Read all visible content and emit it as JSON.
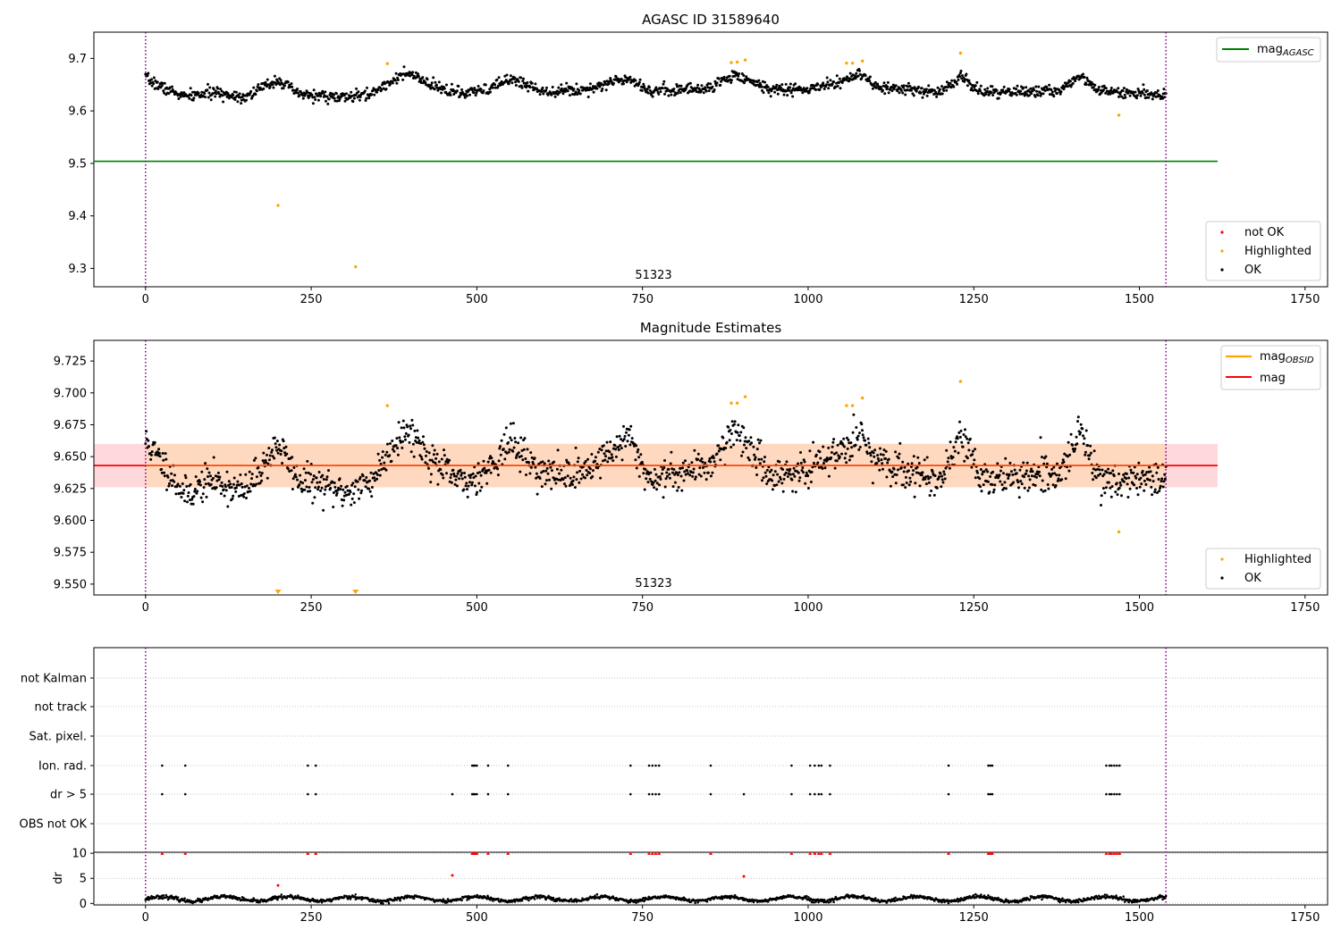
{
  "chart_data": [
    {
      "type": "scatter",
      "title": "AGASC ID 31589640",
      "xlim": [
        -78,
        1784
      ],
      "ylim": [
        9.265,
        9.75
      ],
      "x_ticks": [
        0,
        250,
        500,
        750,
        1000,
        1250,
        1500,
        1750
      ],
      "x_tick_labels": [
        "0",
        "250",
        "500",
        "750",
        "1000",
        "1250",
        "1500",
        "1750"
      ],
      "y_ticks": [
        9.3,
        9.4,
        9.5,
        9.6,
        9.7
      ],
      "y_tick_labels": [
        "9.3",
        "9.4",
        "9.5",
        "9.6",
        "9.7"
      ],
      "annotation": "51323",
      "vlines": [
        0,
        1540
      ],
      "hline": {
        "y": 9.504,
        "x_end": 1618,
        "color": "#008000"
      },
      "legend_top": [
        {
          "label_main": "mag",
          "label_sub": "AGASC",
          "color": "#008000"
        }
      ],
      "legend_bottom": [
        {
          "label": "not OK",
          "color": "#ff0000"
        },
        {
          "label": "Highlighted",
          "color": "#ffa500"
        },
        {
          "label": "OK",
          "color": "#000000"
        }
      ],
      "highlighted": [
        [
          200,
          9.42
        ],
        [
          317,
          9.303
        ],
        [
          365,
          9.69
        ],
        [
          884,
          9.692
        ],
        [
          893,
          9.693
        ],
        [
          905,
          9.697
        ],
        [
          1058,
          9.691
        ],
        [
          1067,
          9.691
        ],
        [
          1082,
          9.695
        ],
        [
          1230,
          9.71
        ],
        [
          1469,
          9.592
        ]
      ],
      "ok_trend": {
        "knots": [
          [
            0,
            9.662
          ],
          [
            30,
            9.642
          ],
          [
            60,
            9.627
          ],
          [
            100,
            9.635
          ],
          [
            150,
            9.627
          ],
          [
            200,
            9.66
          ],
          [
            230,
            9.632
          ],
          [
            300,
            9.625
          ],
          [
            340,
            9.632
          ],
          [
            380,
            9.665
          ],
          [
            400,
            9.67
          ],
          [
            430,
            9.648
          ],
          [
            480,
            9.632
          ],
          [
            520,
            9.642
          ],
          [
            550,
            9.662
          ],
          [
            600,
            9.638
          ],
          [
            660,
            9.64
          ],
          [
            730,
            9.664
          ],
          [
            760,
            9.638
          ],
          [
            850,
            9.643
          ],
          [
            890,
            9.67
          ],
          [
            940,
            9.642
          ],
          [
            1000,
            9.64
          ],
          [
            1060,
            9.66
          ],
          [
            1080,
            9.67
          ],
          [
            1100,
            9.645
          ],
          [
            1200,
            9.635
          ],
          [
            1230,
            9.668
          ],
          [
            1260,
            9.635
          ],
          [
            1380,
            9.638
          ],
          [
            1410,
            9.67
          ],
          [
            1440,
            9.637
          ],
          [
            1540,
            9.632
          ]
        ],
        "x_start": 0,
        "x_end": 1540,
        "count": 1540,
        "scatter": 0.009
      }
    },
    {
      "type": "scatter",
      "title": "Magnitude Estimates",
      "xlim": [
        -78,
        1784
      ],
      "ylim": [
        9.5415,
        9.7412
      ],
      "x_ticks": [
        0,
        250,
        500,
        750,
        1000,
        1250,
        1500,
        1750
      ],
      "x_tick_labels": [
        "0",
        "250",
        "500",
        "750",
        "1000",
        "1250",
        "1500",
        "1750"
      ],
      "y_ticks": [
        9.55,
        9.575,
        9.6,
        9.625,
        9.65,
        9.675,
        9.7,
        9.725
      ],
      "y_tick_labels": [
        "9.550",
        "9.575",
        "9.600",
        "9.625",
        "9.650",
        "9.675",
        "9.700",
        "9.725"
      ],
      "annotation": "51323",
      "vlines": [
        0,
        1540
      ],
      "mag_line": {
        "y": 9.643,
        "x_end": 1618,
        "color": "#ff0000"
      },
      "mag_band": [
        9.626,
        9.66
      ],
      "obsid_band": [
        9.626,
        9.66
      ],
      "legend_top": [
        {
          "label_main": "mag",
          "label_sub": "OBSID",
          "color": "#ffa500"
        },
        {
          "label_main": "mag",
          "label_sub": "",
          "color": "#ff0000"
        }
      ],
      "legend_bottom": [
        {
          "label": "Highlighted",
          "color": "#ffa500"
        },
        {
          "label": "OK",
          "color": "#000000"
        }
      ],
      "highlighted": [
        [
          365,
          9.69
        ],
        [
          884,
          9.692
        ],
        [
          893,
          9.692
        ],
        [
          905,
          9.697
        ],
        [
          1058,
          9.69
        ],
        [
          1067,
          9.69
        ],
        [
          1082,
          9.696
        ],
        [
          1230,
          9.709
        ],
        [
          1469,
          9.591
        ]
      ],
      "highlighted_offscale": [
        200,
        317
      ],
      "ok_trend": {
        "knots": [
          [
            0,
            9.662
          ],
          [
            30,
            9.642
          ],
          [
            60,
            9.62
          ],
          [
            100,
            9.632
          ],
          [
            150,
            9.622
          ],
          [
            200,
            9.66
          ],
          [
            230,
            9.632
          ],
          [
            300,
            9.622
          ],
          [
            340,
            9.63
          ],
          [
            380,
            9.665
          ],
          [
            400,
            9.67
          ],
          [
            430,
            9.648
          ],
          [
            480,
            9.628
          ],
          [
            520,
            9.642
          ],
          [
            550,
            9.662
          ],
          [
            600,
            9.636
          ],
          [
            660,
            9.638
          ],
          [
            730,
            9.665
          ],
          [
            760,
            9.632
          ],
          [
            850,
            9.643
          ],
          [
            890,
            9.672
          ],
          [
            940,
            9.636
          ],
          [
            1000,
            9.638
          ],
          [
            1060,
            9.66
          ],
          [
            1080,
            9.67
          ],
          [
            1100,
            9.645
          ],
          [
            1200,
            9.632
          ],
          [
            1230,
            9.668
          ],
          [
            1260,
            9.633
          ],
          [
            1380,
            9.635
          ],
          [
            1410,
            9.672
          ],
          [
            1440,
            9.632
          ],
          [
            1540,
            9.632
          ]
        ],
        "x_start": 0,
        "x_end": 1540,
        "count": 1540,
        "scatter": 0.011
      }
    },
    {
      "type": "scatter",
      "title": "",
      "xlim": [
        -78,
        1784
      ],
      "x_ticks": [
        0,
        250,
        500,
        750,
        1000,
        1250,
        1500,
        1750
      ],
      "x_tick_labels": [
        "0",
        "250",
        "500",
        "750",
        "1000",
        "1250",
        "1500",
        "1750"
      ],
      "vlines": [
        0,
        1540
      ],
      "flag_rows": [
        "not Kalman",
        "not track",
        "Sat. pixel.",
        "Ion. rad.",
        "dr > 5",
        "OBS not OK"
      ],
      "ion_rad": [
        25,
        60,
        245,
        257,
        493,
        495,
        497,
        500,
        517,
        547,
        732,
        760,
        765,
        770,
        775,
        853,
        975,
        1003,
        1010,
        1016,
        1020,
        1033,
        1212,
        1272,
        1275,
        1278,
        1450,
        1455,
        1458,
        1462,
        1466,
        1470
      ],
      "dr_gt5": [
        25,
        60,
        245,
        257,
        463,
        493,
        495,
        497,
        500,
        517,
        547,
        732,
        760,
        765,
        770,
        775,
        853,
        903,
        975,
        1003,
        1010,
        1016,
        1020,
        1033,
        1212,
        1272,
        1275,
        1278,
        1450,
        1455,
        1458,
        1462,
        1466,
        1470
      ],
      "dr": {
        "ylabel": "dr",
        "ylim": [
          -0.3,
          10.2
        ],
        "y_ticks": [
          0,
          5,
          10
        ],
        "y_tick_labels": [
          "0",
          "5",
          "10"
        ],
        "capped": [
          25,
          60,
          245,
          257,
          493,
          495,
          497,
          500,
          517,
          547,
          732,
          760,
          765,
          770,
          775,
          853,
          975,
          1003,
          1010,
          1016,
          1020,
          1033,
          1212,
          1272,
          1275,
          1278,
          1450,
          1455,
          1458,
          1462,
          1466,
          1470
        ],
        "red_points": [
          [
            463,
            5.6
          ],
          [
            903,
            5.4
          ],
          [
            200,
            3.6
          ]
        ],
        "black_points": [
          [
            317,
            1.8
          ]
        ],
        "trend": {
          "mean": 0.9,
          "amplitude": 0.45,
          "period": 95,
          "count": 1540,
          "scatter": 0.18
        }
      }
    }
  ]
}
